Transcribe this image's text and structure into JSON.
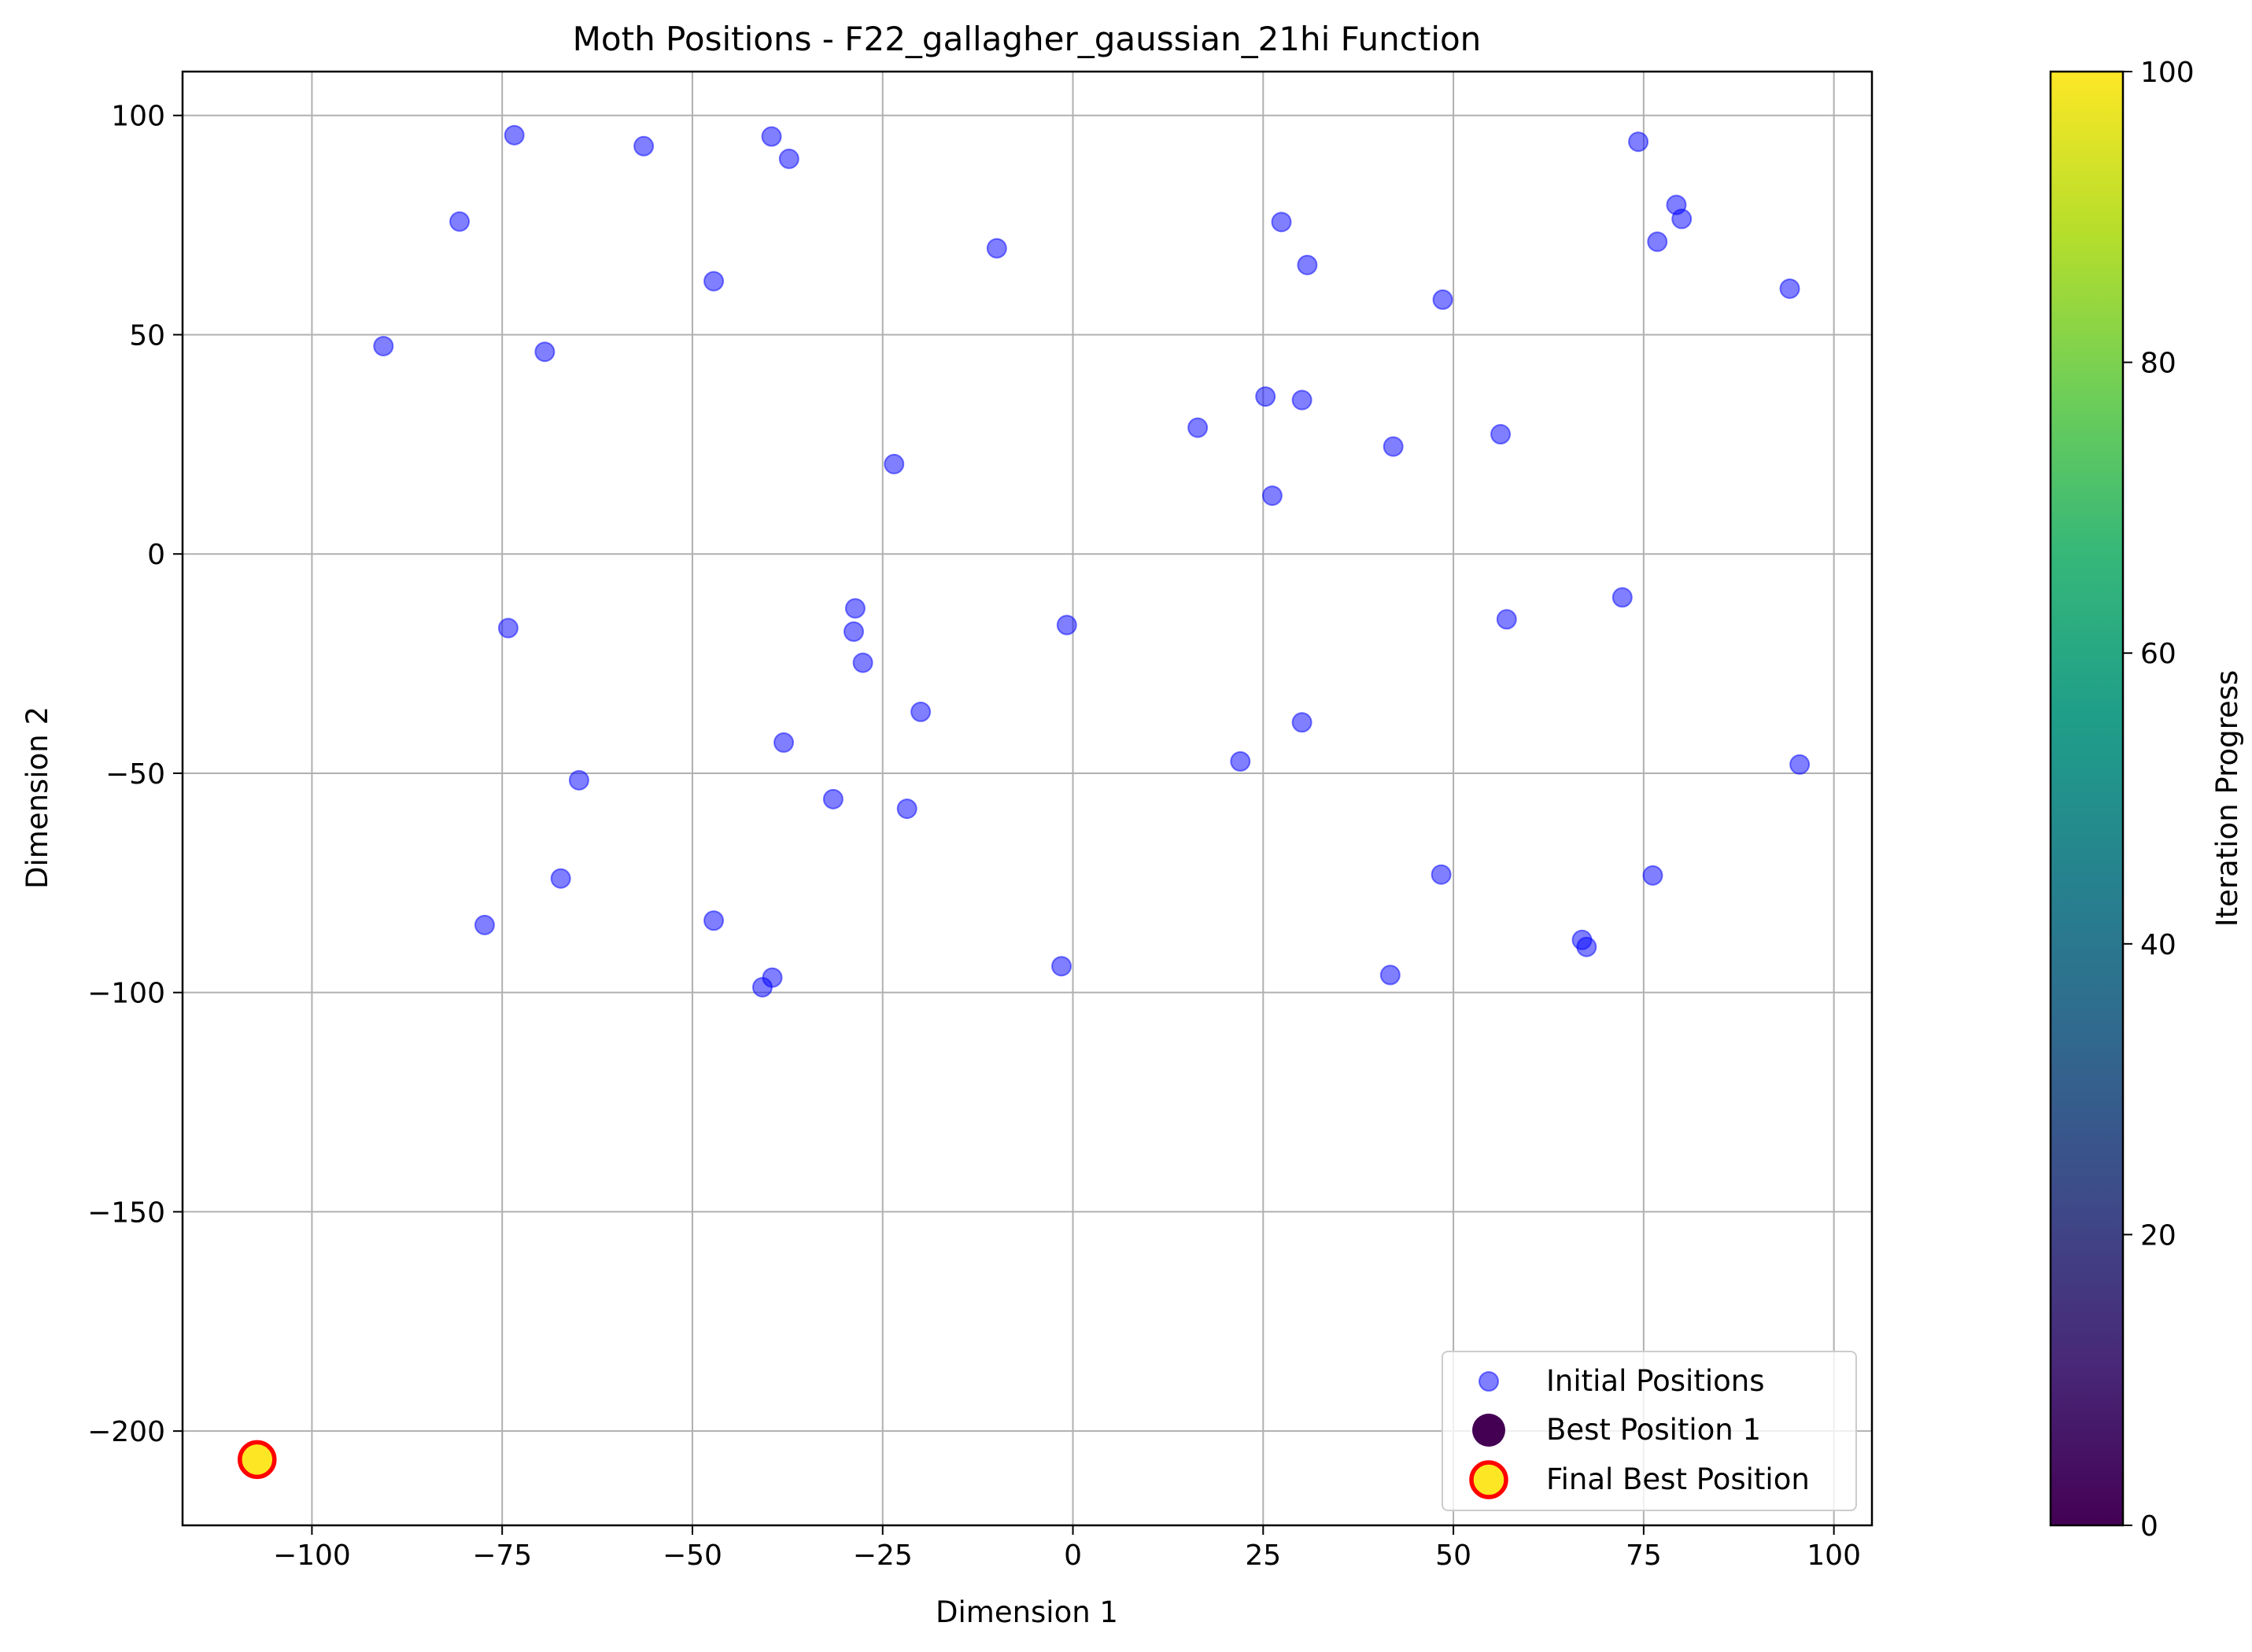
{
  "chart_data": {
    "type": "scatter",
    "title": "Moth Positions - F22_gallagher_gaussian_21hi Function",
    "xlabel": "Dimension 1",
    "ylabel": "Dimension 2",
    "xlim": [
      -117,
      105
    ],
    "ylim": [
      -221.5,
      110
    ],
    "xticks": [
      -100,
      -75,
      -50,
      -25,
      0,
      25,
      50,
      75,
      100
    ],
    "xtick_labels": [
      "−100",
      "−75",
      "−50",
      "−25",
      "0",
      "25",
      "50",
      "75",
      "100"
    ],
    "yticks": [
      100,
      50,
      0,
      -50,
      -100,
      -150,
      -200
    ],
    "ytick_labels": [
      "100",
      "50",
      "0",
      "−50",
      "−100",
      "−150",
      "−200"
    ],
    "grid": true,
    "legend_position": "lower right",
    "series": [
      {
        "name": "Initial Positions",
        "color": "#0000ff",
        "alpha": 0.5,
        "points": [
          [
            -90.6,
            47.4
          ],
          [
            -80.6,
            75.8
          ],
          [
            -73.4,
            95.5
          ],
          [
            -69.4,
            46.1
          ],
          [
            -56.4,
            93.0
          ],
          [
            -47.2,
            62.2
          ],
          [
            -39.6,
            95.2
          ],
          [
            -37.3,
            90.1
          ],
          [
            -23.5,
            20.5
          ],
          [
            -10.0,
            69.7
          ],
          [
            -74.2,
            -16.9
          ],
          [
            -64.9,
            -51.6
          ],
          [
            -67.3,
            -74.0
          ],
          [
            -77.3,
            -84.6
          ],
          [
            -47.2,
            -83.6
          ],
          [
            -40.8,
            -98.8
          ],
          [
            -39.5,
            -96.6
          ],
          [
            -38.0,
            -43.0
          ],
          [
            -31.5,
            -55.9
          ],
          [
            -28.6,
            -12.4
          ],
          [
            -28.8,
            -17.7
          ],
          [
            -27.6,
            -24.8
          ],
          [
            -20.0,
            -36.0
          ],
          [
            -21.8,
            -58.1
          ],
          [
            -0.8,
            -16.2
          ],
          [
            -1.5,
            -94.0
          ],
          [
            16.4,
            28.8
          ],
          [
            25.3,
            35.9
          ],
          [
            26.2,
            13.3
          ],
          [
            27.4,
            75.7
          ],
          [
            30.1,
            35.1
          ],
          [
            30.8,
            65.9
          ],
          [
            42.1,
            24.5
          ],
          [
            48.6,
            58.0
          ],
          [
            56.2,
            27.3
          ],
          [
            22.0,
            -47.3
          ],
          [
            30.1,
            -38.4
          ],
          [
            41.7,
            -96.0
          ],
          [
            48.4,
            -73.1
          ],
          [
            57.0,
            -14.9
          ],
          [
            66.9,
            -88.0
          ],
          [
            67.5,
            -89.6
          ],
          [
            72.2,
            -9.9
          ],
          [
            76.2,
            -73.3
          ],
          [
            95.5,
            -48.0
          ],
          [
            74.3,
            94.0
          ],
          [
            76.8,
            71.2
          ],
          [
            79.3,
            79.6
          ],
          [
            80.0,
            76.4
          ],
          [
            94.2,
            60.5
          ]
        ]
      },
      {
        "name": "Best Position 1",
        "color": "#440154",
        "points": [
          [
            -107.2,
            -206.5
          ]
        ]
      },
      {
        "name": "Final Best Position",
        "color": "#fde725",
        "edgecolor": "#ff0000",
        "points": [
          [
            -107.2,
            -206.5
          ]
        ]
      }
    ],
    "colorbar": {
      "label": "Iteration Progress",
      "range": [
        0,
        100
      ],
      "ticks": [
        0,
        20,
        40,
        60,
        80,
        100
      ],
      "tick_labels": [
        "0",
        "20",
        "40",
        "60",
        "80",
        "100"
      ],
      "colormap_stops": [
        "#440154",
        "#482878",
        "#3e4a89",
        "#31688e",
        "#26828e",
        "#1f9e89",
        "#35b779",
        "#6ece58",
        "#b5de2b",
        "#fde725"
      ]
    }
  }
}
